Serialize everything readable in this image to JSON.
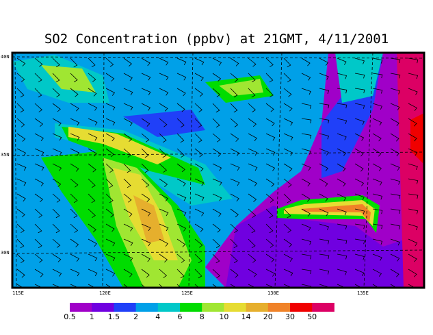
{
  "title": "SO2 Concentration (ppbv) at 21GMT, 4/11/2001",
  "map": {
    "lon_labels": [
      "115E",
      "120E",
      "125E",
      "130E",
      "135E"
    ],
    "lat_labels": [
      "40N",
      "35N",
      "30N"
    ],
    "lon_range": [
      115,
      137
    ],
    "lat_range": [
      28,
      40.5
    ],
    "grid": "dashed",
    "overlay": "wind-barbs"
  },
  "colorbar": {
    "labels": [
      "0.5",
      "1",
      "1.5",
      "2",
      "4",
      "6",
      "8",
      "10",
      "14",
      "20",
      "30",
      "50"
    ],
    "colors": [
      "#a000c8",
      "#7000e0",
      "#2040f8",
      "#00a0e8",
      "#00c8c8",
      "#00dc00",
      "#a0e632",
      "#e6dc32",
      "#e6af2d",
      "#f08228",
      "#f00000",
      "#dc0064"
    ]
  }
}
